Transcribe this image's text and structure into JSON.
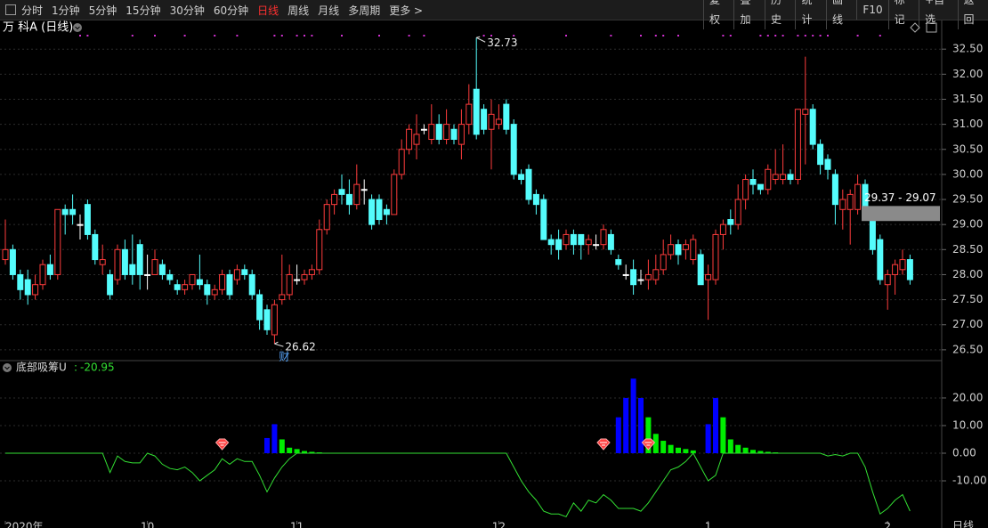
{
  "toolbar": {
    "periods": [
      "分时",
      "1分钟",
      "5分钟",
      "15分钟",
      "30分钟",
      "60分钟",
      "日线",
      "周线",
      "月线",
      "多周期",
      "更多 >"
    ],
    "tools": [
      "复权",
      "叠加",
      "历史",
      "统计",
      "画线",
      "F10",
      "标记",
      "+自选",
      "返回"
    ]
  },
  "chart_data": {
    "type": "candlestick",
    "title": "万 科A (日线)",
    "period_label": "日线",
    "up_color": "#ff3c3c",
    "down_color": "#54fcfc",
    "flat_color": "#ffffff",
    "grid": true,
    "ylim": [
      26.32,
      32.77
    ],
    "yticks": [
      {
        "value": 26.5,
        "label": "26.50"
      },
      {
        "value": 27,
        "label": "27.00"
      },
      {
        "value": 27.5,
        "label": "27.50"
      },
      {
        "value": 28,
        "label": "28.00"
      },
      {
        "value": 28.5,
        "label": "28.50"
      },
      {
        "value": 29,
        "label": "29.00"
      },
      {
        "value": 29.5,
        "label": "29.50"
      },
      {
        "value": 30,
        "label": "30.00"
      },
      {
        "value": 30.5,
        "label": "30.50"
      },
      {
        "value": 31,
        "label": "31.00"
      },
      {
        "value": 31.5,
        "label": "31.50"
      },
      {
        "value": 32,
        "label": "32.00"
      },
      {
        "value": 32.5,
        "label": "32.50"
      }
    ],
    "categories": [
      "2020年",
      null,
      null,
      null,
      null,
      null,
      null,
      null,
      null,
      null,
      null,
      null,
      null,
      null,
      null,
      null,
      null,
      null,
      null,
      "10",
      null,
      null,
      null,
      null,
      null,
      null,
      null,
      null,
      null,
      null,
      null,
      null,
      null,
      null,
      null,
      null,
      null,
      null,
      null,
      "11",
      null,
      null,
      null,
      null,
      null,
      null,
      null,
      null,
      null,
      null,
      null,
      null,
      null,
      null,
      null,
      null,
      null,
      null,
      null,
      null,
      null,
      null,
      null,
      null,
      null,
      null,
      "12",
      null,
      null,
      null,
      null,
      null,
      null,
      null,
      null,
      null,
      null,
      null,
      null,
      null,
      null,
      null,
      null,
      null,
      null,
      null,
      null,
      null,
      null,
      null,
      null,
      null,
      null,
      null,
      "1",
      null,
      null,
      null,
      null,
      null,
      null,
      null,
      null,
      null,
      null,
      null,
      null,
      null,
      null,
      null,
      null,
      null,
      null,
      null,
      null,
      null,
      null,
      null,
      "2",
      null,
      null,
      null
    ],
    "ohlc": [
      [
        28.3,
        29.1,
        28.2,
        28.5
      ],
      [
        28.5,
        28.6,
        27.9,
        28.0
      ],
      [
        28.0,
        28.1,
        27.5,
        27.7
      ],
      [
        27.9,
        28.1,
        27.4,
        27.6
      ],
      [
        27.6,
        28.0,
        27.5,
        27.8
      ],
      [
        27.8,
        28.3,
        27.7,
        28.2
      ],
      [
        28.2,
        28.4,
        27.9,
        28.0
      ],
      [
        28.0,
        29.3,
        27.9,
        29.3
      ],
      [
        29.3,
        29.4,
        28.8,
        29.2
      ],
      [
        29.3,
        29.6,
        29.0,
        29.2
      ],
      [
        29.0,
        29.2,
        28.7,
        29.0
      ],
      [
        29.4,
        29.5,
        28.7,
        28.8
      ],
      [
        28.8,
        28.9,
        28.2,
        28.3
      ],
      [
        28.2,
        28.6,
        28.0,
        28.3
      ],
      [
        28.0,
        28.1,
        27.5,
        27.6
      ],
      [
        27.9,
        28.6,
        27.8,
        28.5
      ],
      [
        28.5,
        28.7,
        27.9,
        28.0
      ],
      [
        28.2,
        28.8,
        27.8,
        28.0
      ],
      [
        28.6,
        28.7,
        27.7,
        28.0
      ],
      [
        28.0,
        28.4,
        27.7,
        28.0
      ],
      [
        28.0,
        28.5,
        28.0,
        28.3
      ],
      [
        28.2,
        28.3,
        27.9,
        28.0
      ],
      [
        28.0,
        28.1,
        27.8,
        27.9
      ],
      [
        27.8,
        27.9,
        27.6,
        27.7
      ],
      [
        27.7,
        27.9,
        27.6,
        27.8
      ],
      [
        27.8,
        28.0,
        27.7,
        28.0
      ],
      [
        27.9,
        28.4,
        27.7,
        27.8
      ],
      [
        27.8,
        27.9,
        27.4,
        27.6
      ],
      [
        27.6,
        27.8,
        27.5,
        27.7
      ],
      [
        27.7,
        28.1,
        27.6,
        28.0
      ],
      [
        28.0,
        28.1,
        27.5,
        27.6
      ],
      [
        27.9,
        28.2,
        27.8,
        28.1
      ],
      [
        28.1,
        28.2,
        27.9,
        28.0
      ],
      [
        28.0,
        28.1,
        27.5,
        27.6
      ],
      [
        27.6,
        27.7,
        26.9,
        27.1
      ],
      [
        27.3,
        27.4,
        26.8,
        26.9
      ],
      [
        26.8,
        27.5,
        26.62,
        27.4
      ],
      [
        27.5,
        28.4,
        27.4,
        27.6
      ],
      [
        27.6,
        28.2,
        27.5,
        28.0
      ],
      [
        27.9,
        28.2,
        27.8,
        27.9
      ],
      [
        27.9,
        28.1,
        27.8,
        28.0
      ],
      [
        28.0,
        28.2,
        27.9,
        28.1
      ],
      [
        28.1,
        29.1,
        28.0,
        28.9
      ],
      [
        28.9,
        29.5,
        28.8,
        29.4
      ],
      [
        29.4,
        29.7,
        29.2,
        29.6
      ],
      [
        29.7,
        30.0,
        29.4,
        29.6
      ],
      [
        29.6,
        29.9,
        29.2,
        29.4
      ],
      [
        29.4,
        30.2,
        29.3,
        29.8
      ],
      [
        29.7,
        29.9,
        29.4,
        29.7
      ],
      [
        29.5,
        29.6,
        28.9,
        29.0
      ],
      [
        29.5,
        29.6,
        29.0,
        29.1
      ],
      [
        29.3,
        29.4,
        29.0,
        29.2
      ],
      [
        29.2,
        30.1,
        29.2,
        30.0
      ],
      [
        30.0,
        30.7,
        29.9,
        30.5
      ],
      [
        30.5,
        31.0,
        30.4,
        30.9
      ],
      [
        30.6,
        31.2,
        30.3,
        30.8
      ],
      [
        30.9,
        31.0,
        30.8,
        30.9
      ],
      [
        30.7,
        31.4,
        30.6,
        31.0
      ],
      [
        31.0,
        31.2,
        30.6,
        30.7
      ],
      [
        30.7,
        31.3,
        30.6,
        31.0
      ],
      [
        30.9,
        31.0,
        30.6,
        30.7
      ],
      [
        30.6,
        31.3,
        30.3,
        31.0
      ],
      [
        31.0,
        31.8,
        30.8,
        31.4
      ],
      [
        31.7,
        32.73,
        30.7,
        30.8
      ],
      [
        31.3,
        31.4,
        30.8,
        30.9
      ],
      [
        30.9,
        31.5,
        30.1,
        31.2
      ],
      [
        31.0,
        31.4,
        30.9,
        31.1
      ],
      [
        31.4,
        31.5,
        30.8,
        30.9
      ],
      [
        31.0,
        31.1,
        29.9,
        30.0
      ],
      [
        30.0,
        30.1,
        29.8,
        29.9
      ],
      [
        30.1,
        30.2,
        29.4,
        29.5
      ],
      [
        29.6,
        29.7,
        29.2,
        29.4
      ],
      [
        29.5,
        29.6,
        28.7,
        28.7
      ],
      [
        28.7,
        28.8,
        28.4,
        28.6
      ],
      [
        28.7,
        28.9,
        28.3,
        28.5
      ],
      [
        28.6,
        28.9,
        28.5,
        28.8
      ],
      [
        28.8,
        28.9,
        28.4,
        28.6
      ],
      [
        28.8,
        28.8,
        28.3,
        28.6
      ],
      [
        28.6,
        28.8,
        28.4,
        28.7
      ],
      [
        28.6,
        28.8,
        28.5,
        28.6
      ],
      [
        28.6,
        29.0,
        28.5,
        28.9
      ],
      [
        28.8,
        28.9,
        28.4,
        28.5
      ],
      [
        28.3,
        28.4,
        28.1,
        28.2
      ],
      [
        28.0,
        28.2,
        27.9,
        28.0
      ],
      [
        28.1,
        28.3,
        27.6,
        27.8
      ],
      [
        27.9,
        28.1,
        27.8,
        27.9
      ],
      [
        27.9,
        28.3,
        27.7,
        28.0
      ],
      [
        27.9,
        28.4,
        27.8,
        28.1
      ],
      [
        28.1,
        28.7,
        28.0,
        28.4
      ],
      [
        28.4,
        28.8,
        28.3,
        28.6
      ],
      [
        28.6,
        28.7,
        28.2,
        28.4
      ],
      [
        28.5,
        28.7,
        28.3,
        28.6
      ],
      [
        28.3,
        28.8,
        28.2,
        28.7
      ],
      [
        28.4,
        28.5,
        27.8,
        27.8
      ],
      [
        27.9,
        28.2,
        27.1,
        28.0
      ],
      [
        27.9,
        28.9,
        27.8,
        28.8
      ],
      [
        28.8,
        29.1,
        28.5,
        29.0
      ],
      [
        29.1,
        29.3,
        28.8,
        29.0
      ],
      [
        29.0,
        29.8,
        28.9,
        29.5
      ],
      [
        29.5,
        30.0,
        29.3,
        29.9
      ],
      [
        29.9,
        30.1,
        29.6,
        29.8
      ],
      [
        29.8,
        29.8,
        29.6,
        29.7
      ],
      [
        29.7,
        30.2,
        29.6,
        30.1
      ],
      [
        29.9,
        30.5,
        29.8,
        30.0
      ],
      [
        29.9,
        30.6,
        29.8,
        30.0
      ],
      [
        30.0,
        30.1,
        29.8,
        29.9
      ],
      [
        29.9,
        31.3,
        29.8,
        31.3
      ],
      [
        31.2,
        32.35,
        30.2,
        31.3
      ],
      [
        31.3,
        31.4,
        30.5,
        30.6
      ],
      [
        30.6,
        30.7,
        30.0,
        30.2
      ],
      [
        30.3,
        30.4,
        29.9,
        30.1
      ],
      [
        30.0,
        30.1,
        29.0,
        29.4
      ],
      [
        29.3,
        29.7,
        28.9,
        29.5
      ],
      [
        29.3,
        29.7,
        28.6,
        29.6
      ],
      [
        29.3,
        30.0,
        29.2,
        29.8
      ],
      [
        29.8,
        29.9,
        29.2,
        29.3
      ],
      [
        29.1,
        29.2,
        28.4,
        28.5
      ],
      [
        28.7,
        28.8,
        27.8,
        27.9
      ],
      [
        27.8,
        28.1,
        27.3,
        28.0
      ],
      [
        28.0,
        28.3,
        27.6,
        28.2
      ],
      [
        28.1,
        28.5,
        28.0,
        28.3
      ],
      [
        28.3,
        28.4,
        27.8,
        27.9
      ]
    ],
    "high_index": 63,
    "low_index": 36,
    "low_note": "财",
    "price_box": {
      "label": "29.37 - 29.07",
      "range": [
        29.07,
        29.37
      ]
    },
    "top_dots": [
      10,
      11,
      17,
      20,
      24,
      28,
      31,
      36,
      37,
      39,
      40,
      41,
      45,
      50,
      54,
      56,
      64,
      65,
      68,
      75,
      81,
      85,
      87,
      88,
      90,
      96,
      97,
      101,
      102,
      103,
      104,
      106,
      107,
      108,
      109,
      110,
      114,
      117
    ],
    "indicator": {
      "name": "底部吸筹U",
      "separator": ":",
      "line_color": "#33e033",
      "ylim": [
        -24.5,
        33.2
      ],
      "yticks": [
        {
          "value": 20,
          "label": "20.00"
        },
        {
          "value": 10,
          "label": "10.00"
        },
        {
          "value": 0,
          "label": "0.00"
        },
        {
          "value": -10,
          "label": "-10.00"
        }
      ],
      "line": [
        0,
        0,
        0,
        0,
        0,
        0,
        0,
        0,
        0,
        0,
        0,
        0,
        0,
        0,
        -7,
        -1,
        -3,
        -3.5,
        -3.5,
        0,
        -1,
        -4,
        -5.5,
        -6,
        -5,
        -7,
        -10,
        -8,
        -6,
        -2,
        -4,
        -2,
        -3,
        -3,
        -8,
        -14,
        -9,
        -5,
        -2,
        0,
        0,
        0,
        0,
        0,
        0,
        0,
        0,
        0,
        0,
        0,
        0,
        0,
        0,
        0,
        0,
        0,
        0,
        0,
        0,
        0,
        0,
        0,
        0,
        0,
        0,
        0,
        0,
        0,
        -5,
        -10,
        -14,
        -17,
        -21,
        -22,
        -22,
        -23,
        -18,
        -21,
        -17,
        -18,
        -15,
        -17,
        -20,
        -20,
        -20,
        -21,
        -18,
        -14,
        -10,
        -6,
        -5,
        -3,
        0,
        -5,
        -10,
        -8,
        0,
        0,
        0,
        0,
        0,
        0,
        0,
        0,
        0,
        0,
        0,
        0,
        0,
        0,
        -1,
        -0.5,
        -1,
        0,
        0,
        -5,
        -14,
        -22,
        -20,
        -17,
        -15,
        -20.95
      ],
      "bars": [
        {
          "color": "#0000ff",
          "values": [
            null,
            null,
            null,
            null,
            null,
            null,
            null,
            null,
            null,
            null,
            null,
            null,
            null,
            null,
            null,
            null,
            null,
            null,
            null,
            null,
            null,
            null,
            null,
            null,
            null,
            null,
            null,
            null,
            null,
            null,
            null,
            null,
            null,
            null,
            null,
            5.5,
            10.5,
            null,
            null,
            null,
            null,
            null,
            null,
            null,
            null,
            null,
            null,
            null,
            null,
            null,
            null,
            null,
            null,
            null,
            null,
            null,
            null,
            null,
            null,
            null,
            null,
            null,
            null,
            null,
            null,
            null,
            null,
            null,
            null,
            null,
            null,
            null,
            null,
            null,
            null,
            null,
            null,
            null,
            null,
            null,
            null,
            null,
            13,
            20,
            27,
            20,
            null,
            null,
            null,
            null,
            null,
            null,
            null,
            null,
            10.5,
            20,
            null,
            null,
            null,
            null,
            null,
            null,
            null,
            null,
            null,
            null,
            null,
            null,
            null,
            null,
            null,
            null,
            null,
            null,
            null,
            null,
            null,
            null,
            null,
            null,
            null,
            null
          ]
        },
        {
          "color": "#00ee00",
          "values": [
            null,
            null,
            null,
            null,
            null,
            null,
            null,
            null,
            null,
            null,
            null,
            null,
            null,
            null,
            null,
            null,
            null,
            null,
            null,
            null,
            null,
            null,
            null,
            null,
            null,
            null,
            null,
            null,
            null,
            null,
            null,
            null,
            null,
            null,
            null,
            null,
            null,
            5,
            2,
            1.5,
            0.8,
            0.5,
            0.3,
            null,
            null,
            null,
            null,
            null,
            null,
            null,
            null,
            null,
            null,
            null,
            null,
            null,
            null,
            null,
            null,
            null,
            null,
            null,
            null,
            null,
            null,
            null,
            null,
            null,
            null,
            null,
            null,
            null,
            null,
            null,
            null,
            null,
            null,
            null,
            null,
            null,
            null,
            null,
            null,
            null,
            null,
            null,
            13,
            7,
            4.5,
            3,
            2,
            1.5,
            1,
            null,
            null,
            null,
            13,
            5,
            3,
            2,
            1.2,
            0.8,
            0.5,
            0.3,
            null,
            null,
            null,
            null,
            null,
            null,
            null,
            null,
            null,
            null,
            null,
            null,
            null,
            null,
            null,
            null,
            null,
            null
          ]
        }
      ],
      "signals": [
        29,
        80,
        86
      ]
    }
  }
}
